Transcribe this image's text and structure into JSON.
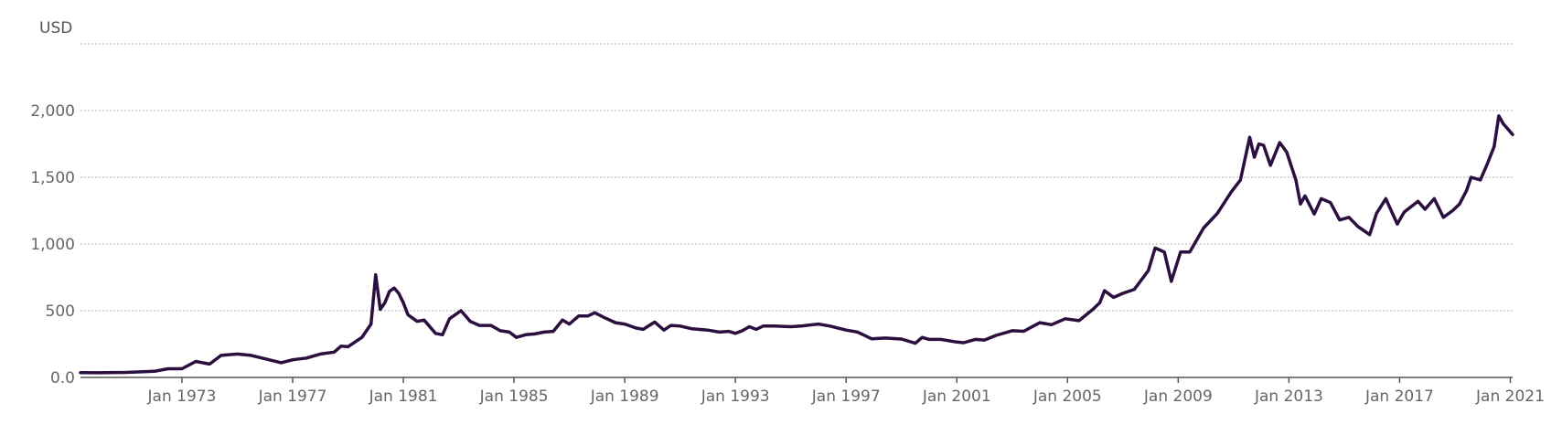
{
  "chart_data": {
    "type": "line",
    "yunit": "USD",
    "ylim": [
      0,
      2500
    ],
    "xlim": [
      "1969-05",
      "2021-02"
    ],
    "grid": true,
    "y_ticks": [
      {
        "value": 0,
        "label": "0.0"
      },
      {
        "value": 500,
        "label": "500"
      },
      {
        "value": 1000,
        "label": "1,000"
      },
      {
        "value": 1500,
        "label": "1,500"
      },
      {
        "value": 2000,
        "label": "2,000"
      },
      {
        "value": 2500,
        "label": ""
      }
    ],
    "x_ticks": [
      {
        "date": "1973-01",
        "label": "Jan 1973"
      },
      {
        "date": "1977-01",
        "label": "Jan 1977"
      },
      {
        "date": "1981-01",
        "label": "Jan 1981"
      },
      {
        "date": "1985-01",
        "label": "Jan 1985"
      },
      {
        "date": "1989-01",
        "label": "Jan 1989"
      },
      {
        "date": "1993-01",
        "label": "Jan 1993"
      },
      {
        "date": "1997-01",
        "label": "Jan 1997"
      },
      {
        "date": "2001-01",
        "label": "Jan 2001"
      },
      {
        "date": "2005-01",
        "label": "Jan 2005"
      },
      {
        "date": "2009-01",
        "label": "Jan 2009"
      },
      {
        "date": "2013-01",
        "label": "Jan 2013"
      },
      {
        "date": "2017-01",
        "label": "Jan 2017"
      },
      {
        "date": "2021-01",
        "label": "Jan 2021"
      }
    ],
    "series": [
      {
        "color": "#2a0f3f",
        "points": [
          [
            "1969-05",
            36
          ],
          [
            "1970-01",
            35
          ],
          [
            "1971-01",
            38
          ],
          [
            "1972-01",
            46
          ],
          [
            "1972-07",
            65
          ],
          [
            "1973-01",
            65
          ],
          [
            "1973-07",
            120
          ],
          [
            "1974-01",
            100
          ],
          [
            "1974-06",
            165
          ],
          [
            "1975-01",
            175
          ],
          [
            "1975-07",
            165
          ],
          [
            "1976-01",
            140
          ],
          [
            "1976-08",
            110
          ],
          [
            "1977-01",
            132
          ],
          [
            "1977-07",
            145
          ],
          [
            "1978-01",
            175
          ],
          [
            "1978-07",
            190
          ],
          [
            "1978-10",
            235
          ],
          [
            "1979-01",
            230
          ],
          [
            "1979-07",
            300
          ],
          [
            "1979-11",
            400
          ],
          [
            "1980-01",
            770
          ],
          [
            "1980-03",
            510
          ],
          [
            "1980-05",
            560
          ],
          [
            "1980-07",
            645
          ],
          [
            "1980-09",
            670
          ],
          [
            "1980-11",
            630
          ],
          [
            "1981-01",
            560
          ],
          [
            "1981-03",
            470
          ],
          [
            "1981-07",
            420
          ],
          [
            "1981-10",
            430
          ],
          [
            "1982-03",
            330
          ],
          [
            "1982-06",
            320
          ],
          [
            "1982-09",
            440
          ],
          [
            "1983-02",
            500
          ],
          [
            "1983-06",
            420
          ],
          [
            "1983-10",
            390
          ],
          [
            "1984-03",
            390
          ],
          [
            "1984-07",
            350
          ],
          [
            "1984-11",
            340
          ],
          [
            "1985-02",
            300
          ],
          [
            "1985-06",
            320
          ],
          [
            "1985-10",
            326
          ],
          [
            "1986-02",
            340
          ],
          [
            "1986-06",
            345
          ],
          [
            "1986-10",
            430
          ],
          [
            "1987-01",
            400
          ],
          [
            "1987-05",
            460
          ],
          [
            "1987-09",
            460
          ],
          [
            "1987-12",
            485
          ],
          [
            "1988-04",
            450
          ],
          [
            "1988-09",
            410
          ],
          [
            "1989-01",
            400
          ],
          [
            "1989-06",
            370
          ],
          [
            "1989-09",
            360
          ],
          [
            "1990-02",
            415
          ],
          [
            "1990-06",
            355
          ],
          [
            "1990-09",
            390
          ],
          [
            "1991-01",
            385
          ],
          [
            "1991-06",
            365
          ],
          [
            "1992-01",
            355
          ],
          [
            "1992-06",
            340
          ],
          [
            "1992-10",
            345
          ],
          [
            "1993-01",
            330
          ],
          [
            "1993-04",
            350
          ],
          [
            "1993-07",
            380
          ],
          [
            "1993-10",
            360
          ],
          [
            "1994-01",
            385
          ],
          [
            "1994-06",
            385
          ],
          [
            "1995-01",
            380
          ],
          [
            "1995-06",
            386
          ],
          [
            "1996-01",
            400
          ],
          [
            "1996-06",
            385
          ],
          [
            "1997-01",
            355
          ],
          [
            "1997-06",
            340
          ],
          [
            "1997-12",
            290
          ],
          [
            "1998-06",
            295
          ],
          [
            "1999-01",
            288
          ],
          [
            "1999-07",
            256
          ],
          [
            "1999-10",
            300
          ],
          [
            "2000-01",
            285
          ],
          [
            "2000-06",
            285
          ],
          [
            "2001-01",
            265
          ],
          [
            "2001-04",
            260
          ],
          [
            "2001-09",
            285
          ],
          [
            "2002-01",
            280
          ],
          [
            "2002-06",
            315
          ],
          [
            "2003-01",
            350
          ],
          [
            "2003-06",
            346
          ],
          [
            "2004-01",
            410
          ],
          [
            "2004-06",
            395
          ],
          [
            "2004-12",
            440
          ],
          [
            "2005-06",
            425
          ],
          [
            "2005-12",
            510
          ],
          [
            "2006-03",
            560
          ],
          [
            "2006-05",
            650
          ],
          [
            "2006-09",
            600
          ],
          [
            "2007-01",
            630
          ],
          [
            "2007-06",
            660
          ],
          [
            "2007-12",
            800
          ],
          [
            "2008-03",
            970
          ],
          [
            "2008-07",
            940
          ],
          [
            "2008-10",
            720
          ],
          [
            "2009-02",
            940
          ],
          [
            "2009-06",
            940
          ],
          [
            "2009-12",
            1120
          ],
          [
            "2010-06",
            1230
          ],
          [
            "2010-12",
            1390
          ],
          [
            "2011-04",
            1480
          ],
          [
            "2011-08",
            1800
          ],
          [
            "2011-10",
            1650
          ],
          [
            "2011-12",
            1750
          ],
          [
            "2012-02",
            1740
          ],
          [
            "2012-05",
            1590
          ],
          [
            "2012-09",
            1760
          ],
          [
            "2012-12",
            1690
          ],
          [
            "2013-04",
            1480
          ],
          [
            "2013-06",
            1300
          ],
          [
            "2013-08",
            1360
          ],
          [
            "2013-12",
            1225
          ],
          [
            "2014-03",
            1340
          ],
          [
            "2014-07",
            1310
          ],
          [
            "2014-11",
            1180
          ],
          [
            "2015-03",
            1200
          ],
          [
            "2015-07",
            1130
          ],
          [
            "2015-12",
            1070
          ],
          [
            "2016-03",
            1230
          ],
          [
            "2016-07",
            1340
          ],
          [
            "2016-12",
            1150
          ],
          [
            "2017-03",
            1240
          ],
          [
            "2017-09",
            1320
          ],
          [
            "2017-12",
            1260
          ],
          [
            "2018-04",
            1340
          ],
          [
            "2018-08",
            1200
          ],
          [
            "2018-12",
            1250
          ],
          [
            "2019-03",
            1300
          ],
          [
            "2019-06",
            1400
          ],
          [
            "2019-08",
            1500
          ],
          [
            "2019-12",
            1480
          ],
          [
            "2020-03",
            1600
          ],
          [
            "2020-06",
            1730
          ],
          [
            "2020-08",
            1960
          ],
          [
            "2020-10",
            1900
          ],
          [
            "2020-12",
            1860
          ],
          [
            "2021-02",
            1820
          ]
        ]
      }
    ]
  }
}
